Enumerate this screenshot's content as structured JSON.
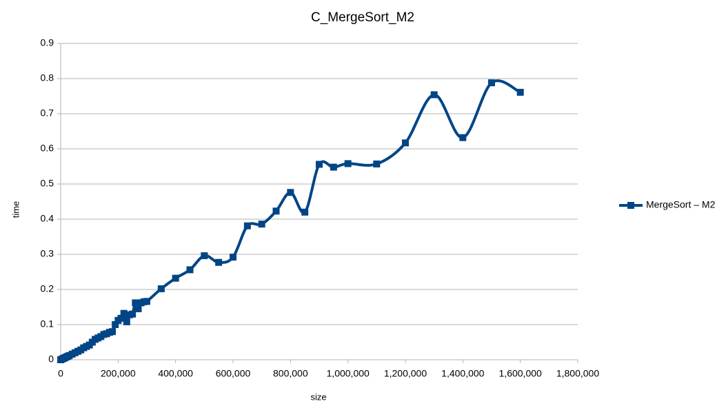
{
  "chart_data": {
    "type": "line",
    "title": "C_MergeSort_M2",
    "x_label": "size",
    "y_label": "time",
    "x": [
      0,
      5000,
      10000,
      15000,
      20000,
      25000,
      30000,
      40000,
      50000,
      60000,
      70000,
      80000,
      90000,
      100000,
      110000,
      120000,
      130000,
      140000,
      150000,
      160000,
      170000,
      180000,
      190000,
      200000,
      210000,
      220000,
      230000,
      240000,
      250000,
      260000,
      270000,
      280000,
      290000,
      300000,
      350000,
      400000,
      450000,
      500000,
      550000,
      600000,
      650000,
      700000,
      750000,
      800000,
      850000,
      900000,
      950000,
      1000000,
      1100000,
      1200000,
      1300000,
      1400000,
      1500000,
      1600000
    ],
    "series": [
      {
        "name": "MergeSort – M2",
        "color": "#004586",
        "values": [
          0,
          0.002,
          0.004,
          0.006,
          0.008,
          0.01,
          0.012,
          0.016,
          0.02,
          0.024,
          0.028,
          0.034,
          0.038,
          0.042,
          0.05,
          0.058,
          0.062,
          0.066,
          0.072,
          0.074,
          0.078,
          0.08,
          0.1,
          0.112,
          0.118,
          0.132,
          0.108,
          0.128,
          0.13,
          0.162,
          0.145,
          0.162,
          0.165,
          0.166,
          0.202,
          0.232,
          0.256,
          0.296,
          0.277,
          0.292,
          0.381,
          0.386,
          0.423,
          0.476,
          0.42,
          0.556,
          0.548,
          0.558,
          0.557,
          0.617,
          0.754,
          0.632,
          0.788,
          0.761
        ]
      }
    ],
    "xlim": [
      0,
      1800000
    ],
    "xticks": [
      0,
      {
        "value": 200000,
        "label": "200,000"
      },
      {
        "value": 400000,
        "label": "400,000"
      },
      {
        "value": 600000,
        "label": "600,000"
      },
      {
        "value": 800000,
        "label": "800,000"
      },
      {
        "value": 1000000,
        "label": "1,000,000"
      },
      {
        "value": 1200000,
        "label": "1,200,000"
      },
      {
        "value": 1400000,
        "label": "1,400,000"
      },
      {
        "value": 1600000,
        "label": "1,600,000"
      },
      {
        "value": 1800000,
        "label": "1,800,000"
      }
    ],
    "ylim": [
      0,
      0.9
    ],
    "yticks": [
      0,
      0.1,
      0.2,
      0.3,
      0.4,
      0.5,
      0.6,
      0.7,
      0.8,
      0.9
    ],
    "grid": true,
    "legend": "right",
    "smooth": true
  }
}
